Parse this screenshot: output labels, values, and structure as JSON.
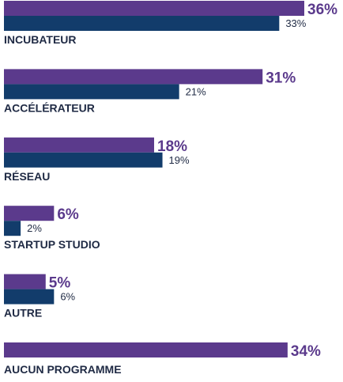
{
  "chart_data": {
    "type": "bar",
    "orientation": "horizontal",
    "categories": [
      "INCUBATEUR",
      "ACCÉLÉRATEUR",
      "RÉSEAU",
      "STARTUP STUDIO",
      "AUTRE",
      "AUCUN PROGRAMME"
    ],
    "series": [
      {
        "values": [
          36,
          31,
          18,
          6,
          5,
          34
        ],
        "value_labels": [
          "36%",
          "31%",
          "18%",
          "6%",
          "5%",
          "34%"
        ]
      },
      {
        "values": [
          33,
          21,
          19,
          2,
          6,
          null
        ],
        "value_labels": [
          "33%",
          "21%",
          "19%",
          "2%",
          "6%",
          ""
        ]
      }
    ],
    "unit": "%",
    "xlim": [
      0,
      40
    ],
    "grid": false,
    "legend": "none",
    "colors": {
      "series_a": "#5b3a8c",
      "series_b": "#123c6b",
      "label_a": "#5b3a8c"
    }
  }
}
